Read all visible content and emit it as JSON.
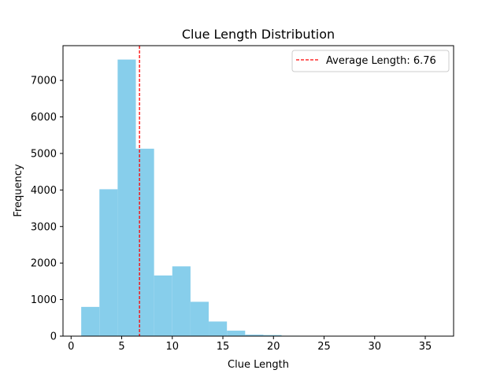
{
  "chart_data": {
    "type": "bar",
    "title": "Clue Length Distribution",
    "xlabel": "Clue Length",
    "ylabel": "Frequency",
    "xlim": [
      -0.8,
      37.8
    ],
    "ylim": [
      0,
      7950
    ],
    "xticks": [
      0,
      5,
      10,
      15,
      20,
      25,
      30,
      35
    ],
    "yticks": [
      0,
      1000,
      2000,
      3000,
      4000,
      5000,
      6000,
      7000
    ],
    "bins": [
      {
        "x0": 1.0,
        "x1": 2.8,
        "count": 800
      },
      {
        "x0": 2.8,
        "x1": 4.6,
        "count": 4020
      },
      {
        "x0": 4.6,
        "x1": 6.4,
        "count": 7570
      },
      {
        "x0": 6.4,
        "x1": 8.2,
        "count": 5130
      },
      {
        "x0": 8.2,
        "x1": 10.0,
        "count": 1660
      },
      {
        "x0": 10.0,
        "x1": 11.8,
        "count": 1910
      },
      {
        "x0": 11.8,
        "x1": 13.6,
        "count": 940
      },
      {
        "x0": 13.6,
        "x1": 15.4,
        "count": 400
      },
      {
        "x0": 15.4,
        "x1": 17.2,
        "count": 150
      },
      {
        "x0": 17.2,
        "x1": 19.0,
        "count": 40
      },
      {
        "x0": 19.0,
        "x1": 20.8,
        "count": 30
      },
      {
        "x0": 20.8,
        "x1": 22.6,
        "count": 12
      },
      {
        "x0": 22.6,
        "x1": 24.4,
        "count": 8
      },
      {
        "x0": 24.4,
        "x1": 26.2,
        "count": 4
      },
      {
        "x0": 26.2,
        "x1": 28.0,
        "count": 2
      },
      {
        "x0": 28.0,
        "x1": 29.8,
        "count": 1
      },
      {
        "x0": 29.8,
        "x1": 31.6,
        "count": 1
      },
      {
        "x0": 31.6,
        "x1": 33.4,
        "count": 0
      },
      {
        "x0": 33.4,
        "x1": 35.2,
        "count": 1
      },
      {
        "x0": 35.2,
        "x1": 37.0,
        "count": 1
      }
    ],
    "average": {
      "value": 6.76,
      "label": "Average Length: 6.76"
    },
    "legend": {
      "placement": "top-right"
    },
    "colors": {
      "bar": "#87ceeb",
      "average_line": "#ff0000",
      "axes": "#000000",
      "background": "#ffffff"
    },
    "grid": false
  }
}
